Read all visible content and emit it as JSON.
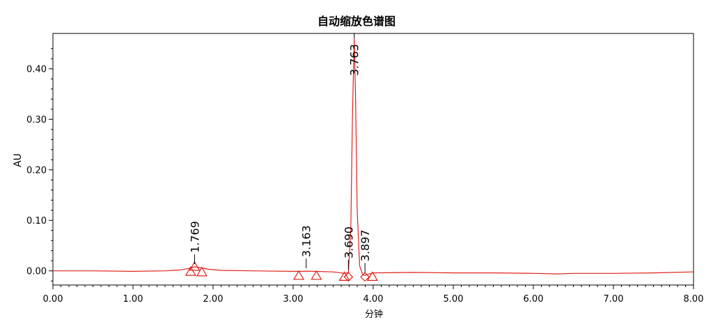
{
  "chart_data": {
    "type": "line",
    "title": "自动缩放色谱图",
    "xlabel": "分钟",
    "ylabel": "AU",
    "xlim": [
      0,
      8
    ],
    "ylim": [
      -0.028,
      0.47
    ],
    "x_ticks": [
      0,
      1,
      2,
      3,
      4,
      5,
      6,
      7,
      8
    ],
    "x_tick_labels": [
      "0.00",
      "1.00",
      "2.00",
      "3.00",
      "4.00",
      "5.00",
      "6.00",
      "7.00",
      "8.00"
    ],
    "y_ticks": [
      0,
      0.1,
      0.2,
      0.3,
      0.4
    ],
    "y_tick_labels": [
      "0.00",
      "0.10",
      "0.20",
      "0.30",
      "0.40"
    ],
    "grid": false,
    "colors": {
      "trace": "#e0201c",
      "axis": "#000000",
      "marker": "#e0201c"
    },
    "series": [
      {
        "x": [
          0.0,
          0.5,
          1.0,
          1.4,
          1.6,
          1.7,
          1.769,
          1.85,
          1.95,
          2.1,
          2.5,
          3.0,
          3.1,
          3.163,
          3.25,
          3.5,
          3.65,
          3.69,
          3.72,
          3.74,
          3.763,
          3.78,
          3.8,
          3.83,
          3.87,
          3.897,
          3.95,
          4.0,
          4.5,
          5.0,
          5.5,
          6.0,
          6.3,
          6.5,
          7.0,
          7.5,
          8.0
        ],
        "y": [
          0.0,
          0.0,
          -0.001,
          0.0,
          0.002,
          0.005,
          0.008,
          0.006,
          0.003,
          0.001,
          0.0,
          -0.001,
          -0.001,
          -0.0005,
          -0.001,
          -0.002,
          -0.005,
          -0.003,
          0.08,
          0.3,
          0.46,
          0.34,
          0.12,
          0.01,
          -0.008,
          -0.009,
          -0.006,
          -0.004,
          -0.003,
          -0.004,
          -0.004,
          -0.005,
          -0.006,
          -0.005,
          -0.005,
          -0.004,
          -0.002
        ]
      }
    ],
    "peaks": [
      {
        "label": "1.769",
        "x": 1.769,
        "y": 0.008
      },
      {
        "label": "3.163",
        "x": 3.163,
        "y": -0.0005
      },
      {
        "label": "3.690",
        "x": 3.69,
        "y": -0.003
      },
      {
        "label": "3.763",
        "x": 3.763,
        "y": 0.46
      },
      {
        "label": "3.897",
        "x": 3.897,
        "y": -0.009
      }
    ],
    "markers": [
      {
        "shape": "triangle",
        "x": 1.769,
        "y": 0.008
      },
      {
        "shape": "triangle",
        "x": 1.72,
        "y": -0.002
      },
      {
        "shape": "triangle",
        "x": 1.86,
        "y": -0.003
      },
      {
        "shape": "triangle",
        "x": 3.07,
        "y": -0.01
      },
      {
        "shape": "triangle",
        "x": 3.29,
        "y": -0.01
      },
      {
        "shape": "triangle",
        "x": 3.64,
        "y": -0.012
      },
      {
        "shape": "diamond",
        "x": 3.69,
        "y": -0.012
      },
      {
        "shape": "diamond",
        "x": 3.897,
        "y": -0.012
      },
      {
        "shape": "triangle",
        "x": 3.99,
        "y": -0.012
      }
    ]
  }
}
